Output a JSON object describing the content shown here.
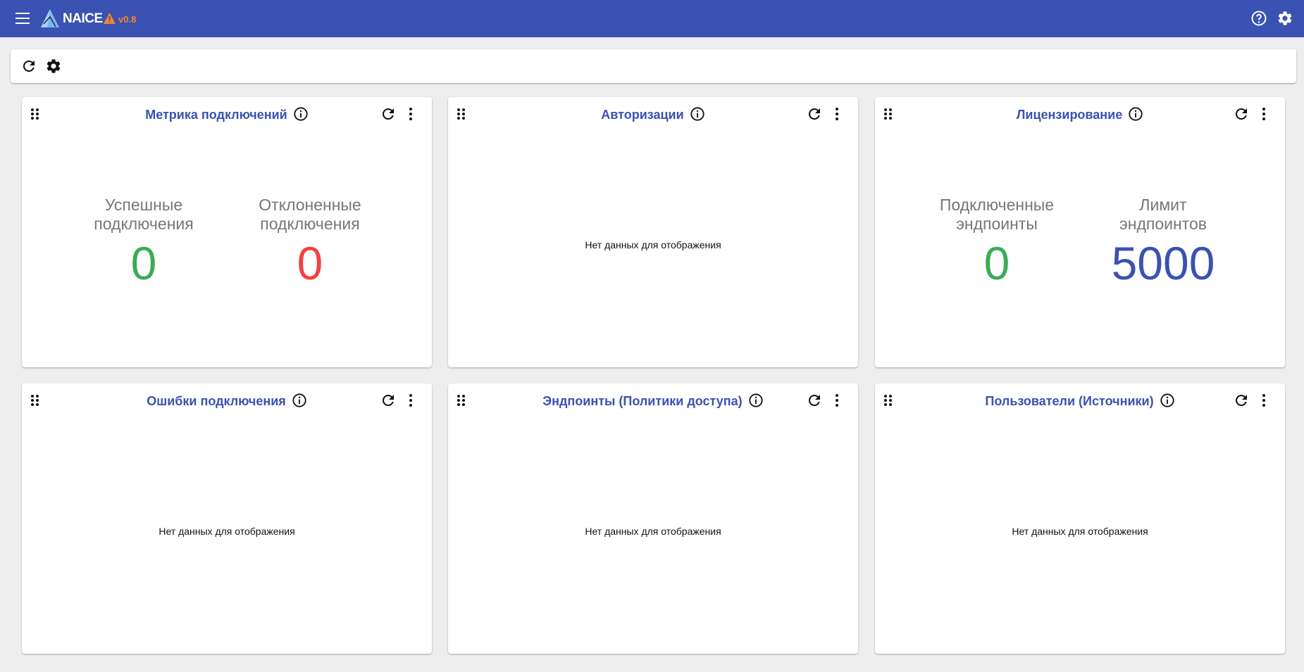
{
  "header": {
    "app_name": "NAICE",
    "version": "v0.8",
    "icons": [
      "menu-icon",
      "logo-icon",
      "warning-icon",
      "help-icon",
      "settings-icon"
    ]
  },
  "toolbar": {
    "icons": [
      "refresh-icon",
      "settings-icon"
    ]
  },
  "colors": {
    "primary": "#3a52b1",
    "success": "#3bab55",
    "error": "#f44141",
    "warning": "#f5862b"
  },
  "widgets": [
    {
      "title": "Метрика подключений",
      "metrics": [
        {
          "label": "Успешные подключения",
          "value": "0"
        },
        {
          "label": "Отклоненные подключения",
          "value": "0"
        }
      ]
    },
    {
      "title": "Авторизации",
      "empty": "Нет данных для отображения"
    },
    {
      "title": "Лицензирование",
      "metrics": [
        {
          "label": "Подключенные эндпоинты",
          "value": "0"
        },
        {
          "label": "Лимит эндпоинтов",
          "value": "5000"
        }
      ]
    },
    {
      "title": "Ошибки подключения",
      "empty": "Нет данных для отображения"
    },
    {
      "title": "Эндпоинты (Политики доступа)",
      "empty": "Нет данных для отображения"
    },
    {
      "title": "Пользователи (Источники)",
      "empty": "Нет данных для отображения"
    }
  ]
}
